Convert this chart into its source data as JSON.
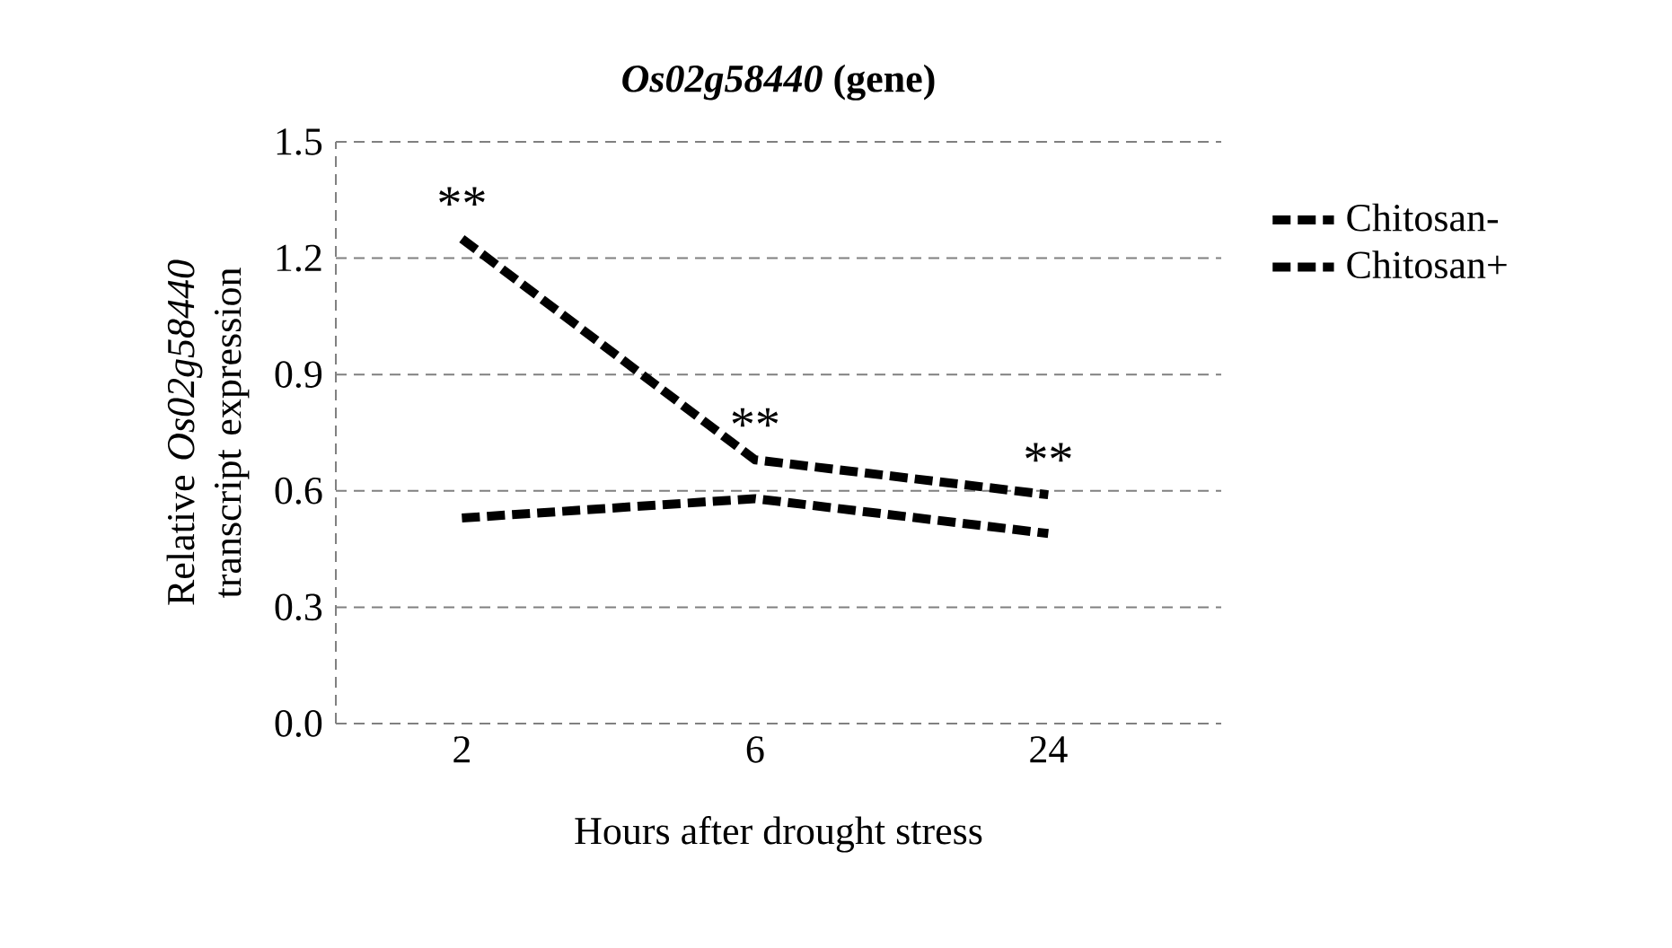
{
  "chart_data": {
    "type": "line",
    "title": "*Os02g58440* (gene)",
    "xlabel": "Hours after drought stress",
    "ylabel": "Relative *Os02g58440* transcript expression",
    "categories": [
      "2",
      "6",
      "24"
    ],
    "series": [
      {
        "name": "Chitosan-",
        "color": "#000000",
        "line_style": "dashed",
        "values": [
          1.25,
          0.68,
          0.59
        ]
      },
      {
        "name": "Chitosan+",
        "color": "#000000",
        "line_style": "dashed",
        "values": [
          0.53,
          0.58,
          0.49
        ]
      }
    ],
    "ylim": [
      0,
      1.5
    ],
    "yticks": [
      {
        "value": 0,
        "label": "0.0"
      },
      0.3,
      0.6,
      0.9,
      1.2,
      1.5
    ],
    "grid": "y",
    "legend": "right",
    "marker": "none",
    "annotations": [
      {
        "text": "**",
        "x": "2",
        "y": 1.25
      },
      {
        "text": "**",
        "x": "6",
        "y": 0.68
      },
      {
        "text": "**",
        "x": "24",
        "y": 0.59
      }
    ]
  }
}
